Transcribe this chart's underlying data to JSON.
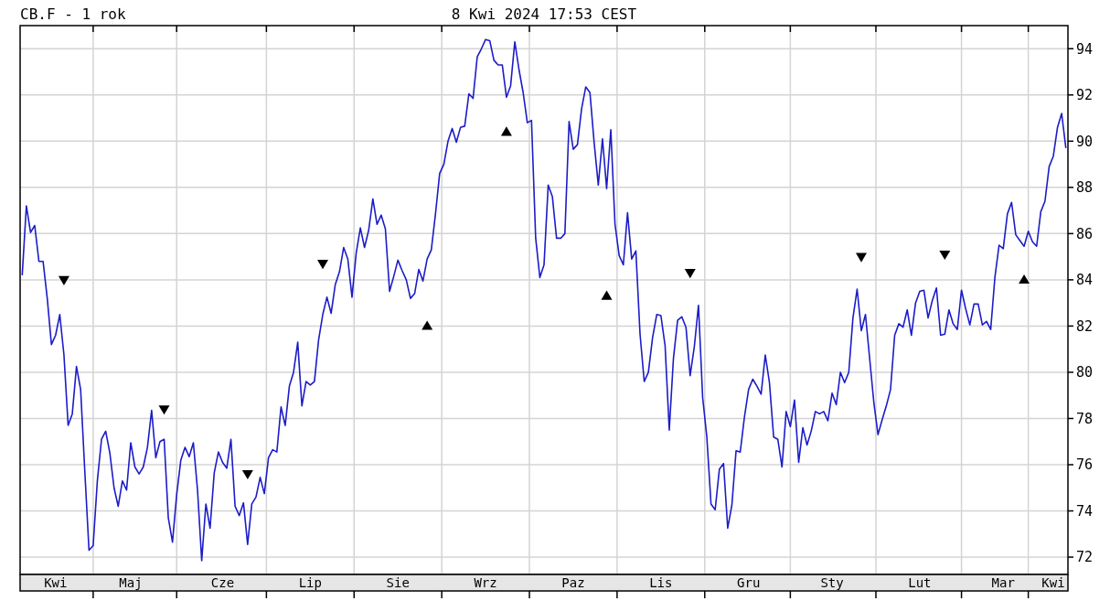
{
  "chart_data": {
    "type": "line",
    "title": "CB.F - 1 rok",
    "subtitle": "8 Kwi 2024 17:53 CEST",
    "categories": [
      null,
      null,
      null,
      null,
      null,
      null,
      null,
      null,
      "Kwi",
      null,
      null,
      null,
      null,
      null,
      null,
      null,
      null,
      null,
      null,
      null,
      null,
      null,
      null,
      null,
      null,
      null,
      "Maj",
      null,
      null,
      null,
      null,
      null,
      null,
      null,
      null,
      null,
      null,
      null,
      null,
      null,
      null,
      null,
      null,
      null,
      null,
      null,
      null,
      null,
      "Cze",
      null,
      null,
      null,
      null,
      null,
      null,
      null,
      null,
      null,
      null,
      null,
      null,
      null,
      null,
      null,
      null,
      null,
      null,
      null,
      null,
      "Lip",
      null,
      null,
      null,
      null,
      null,
      null,
      null,
      null,
      null,
      null,
      null,
      null,
      null,
      null,
      null,
      null,
      null,
      null,
      null,
      null,
      "Sie",
      null,
      null,
      null,
      null,
      null,
      null,
      null,
      null,
      null,
      null,
      null,
      null,
      null,
      null,
      null,
      null,
      null,
      null,
      null,
      null,
      "Wrz",
      null,
      null,
      null,
      null,
      null,
      null,
      null,
      null,
      null,
      null,
      null,
      null,
      null,
      null,
      null,
      null,
      null,
      null,
      null,
      null,
      "Paz",
      null,
      null,
      null,
      null,
      null,
      null,
      null,
      null,
      null,
      null,
      null,
      null,
      null,
      null,
      null,
      null,
      null,
      null,
      null,
      null,
      "Lis",
      null,
      null,
      null,
      null,
      null,
      null,
      null,
      null,
      null,
      null,
      null,
      null,
      null,
      null,
      null,
      null,
      null,
      null,
      null,
      null,
      "Gru",
      null,
      null,
      null,
      null,
      null,
      null,
      null,
      null,
      null,
      null,
      null,
      null,
      null,
      null,
      null,
      null,
      null,
      null,
      null,
      "Sty",
      null,
      null,
      null,
      null,
      null,
      null,
      null,
      null,
      null,
      null,
      null,
      null,
      null,
      null,
      null,
      null,
      null,
      null,
      null,
      null,
      "Lut",
      null,
      null,
      null,
      null,
      null,
      null,
      null,
      null,
      null,
      null,
      null,
      null,
      null,
      null,
      null,
      null,
      null,
      null,
      null,
      "Mar",
      null,
      null,
      null,
      null,
      null,
      null,
      null,
      null,
      null,
      null,
      null,
      "Kwi",
      null,
      null,
      null
    ],
    "ylim": [
      71.25,
      95
    ],
    "yticks": [
      72,
      74,
      76,
      78,
      80,
      82,
      84,
      86,
      88,
      90,
      92,
      94
    ],
    "grid": true,
    "series": [
      {
        "color": "#1c1cc8",
        "marker": "none",
        "line_style": "solid",
        "values": [
          84.2,
          87.2,
          86.05,
          86.35,
          84.8,
          84.8,
          83.2,
          81.2,
          81.6,
          82.5,
          80.75,
          77.7,
          78.2,
          80.25,
          79.25,
          75.7,
          72.3,
          72.5,
          75.3,
          77.1,
          77.45,
          76.5,
          75.0,
          74.2,
          75.3,
          74.9,
          76.95,
          75.9,
          75.6,
          75.9,
          76.75,
          78.35,
          76.3,
          77.0,
          77.1,
          73.7,
          72.65,
          74.7,
          76.2,
          76.75,
          76.35,
          76.95,
          74.9,
          71.85,
          74.3,
          73.25,
          75.65,
          76.55,
          76.1,
          75.85,
          77.1,
          74.2,
          73.8,
          74.35,
          72.55,
          74.3,
          74.6,
          75.45,
          74.75,
          76.3,
          76.65,
          76.55,
          78.5,
          77.7,
          79.4,
          80.0,
          81.3,
          78.55,
          79.6,
          79.45,
          79.6,
          81.4,
          82.5,
          83.25,
          82.55,
          83.8,
          84.35,
          85.4,
          84.9,
          83.25,
          85.15,
          86.25,
          85.4,
          86.15,
          87.5,
          86.4,
          86.8,
          86.2,
          83.5,
          84.15,
          84.85,
          84.4,
          84.0,
          83.2,
          83.4,
          84.45,
          83.95,
          84.9,
          85.3,
          86.85,
          88.6,
          89.0,
          90.0,
          90.55,
          89.95,
          90.6,
          90.65,
          92.05,
          91.85,
          93.65,
          94.0,
          94.4,
          94.35,
          93.5,
          93.3,
          93.3,
          91.9,
          92.4,
          94.3,
          93.1,
          92.1,
          90.8,
          90.9,
          85.8,
          84.1,
          84.65,
          88.1,
          87.6,
          85.8,
          85.8,
          86.0,
          90.85,
          89.65,
          89.85,
          91.4,
          92.35,
          92.1,
          89.95,
          88.1,
          90.1,
          87.95,
          90.5,
          86.4,
          85.05,
          84.65,
          86.9,
          84.9,
          85.25,
          81.65,
          79.6,
          80.0,
          81.5,
          82.5,
          82.45,
          81.15,
          77.5,
          80.6,
          82.25,
          82.4,
          81.95,
          79.85,
          81.1,
          82.9,
          78.9,
          77.2,
          74.3,
          74.05,
          75.8,
          76.05,
          73.25,
          74.25,
          76.6,
          76.55,
          78.05,
          79.25,
          79.7,
          79.4,
          79.05,
          80.75,
          79.55,
          77.2,
          77.1,
          75.9,
          78.3,
          77.65,
          78.8,
          76.1,
          77.6,
          76.85,
          77.45,
          78.3,
          78.2,
          78.3,
          77.9,
          79.1,
          78.6,
          80.0,
          79.55,
          80.0,
          82.35,
          83.6,
          81.8,
          82.5,
          80.6,
          78.7,
          77.3,
          77.95,
          78.55,
          79.25,
          81.6,
          82.1,
          81.95,
          82.7,
          81.6,
          83.0,
          83.5,
          83.55,
          82.35,
          83.1,
          83.65,
          81.6,
          81.65,
          82.7,
          82.1,
          81.85,
          83.55,
          82.75,
          82.05,
          82.95,
          82.95,
          82.05,
          82.2,
          81.85,
          84.1,
          85.5,
          85.35,
          86.85,
          87.35,
          85.95,
          85.7,
          85.45,
          86.1,
          85.65,
          85.45,
          86.95,
          87.4,
          88.9,
          89.35,
          90.6,
          91.2,
          89.7
        ]
      },
      {
        "type": "scatter",
        "color": "#000000",
        "marker": "triangle-down",
        "values": [
          null,
          null,
          null,
          null,
          null,
          null,
          null,
          null,
          null,
          null,
          84.0,
          null,
          null,
          null,
          null,
          null,
          null,
          null,
          null,
          null,
          null,
          null,
          null,
          null,
          null,
          null,
          null,
          null,
          null,
          null,
          null,
          null,
          null,
          null,
          78.4,
          null,
          null,
          null,
          null,
          null,
          null,
          null,
          null,
          null,
          null,
          null,
          null,
          null,
          null,
          null,
          null,
          null,
          null,
          null,
          75.6,
          null,
          null,
          null,
          null,
          null,
          null,
          null,
          null,
          null,
          null,
          null,
          null,
          null,
          null,
          null,
          null,
          null,
          84.7,
          null,
          null,
          null,
          null,
          null,
          null,
          null,
          null,
          null,
          null,
          null,
          null,
          null,
          null,
          null,
          null,
          null,
          null,
          null,
          null,
          null,
          null,
          null,
          null,
          null,
          null,
          null,
          null,
          null,
          null,
          null,
          null,
          null,
          null,
          null,
          null,
          null,
          null,
          null,
          null,
          null,
          null,
          null,
          null,
          null,
          null,
          null,
          null,
          null,
          null,
          null,
          null,
          null,
          null,
          null,
          null,
          null,
          null,
          null,
          null,
          null,
          null,
          null,
          null,
          null,
          null,
          null,
          null,
          null,
          null,
          null,
          null,
          null,
          null,
          null,
          null,
          null,
          null,
          null,
          null,
          null,
          null,
          null,
          null,
          null,
          null,
          null,
          84.3,
          null,
          null,
          null,
          null,
          null,
          null,
          null,
          null,
          null,
          null,
          null,
          null,
          null,
          null,
          null,
          null,
          null,
          null,
          null,
          null,
          null,
          null,
          null,
          null,
          null,
          null,
          null,
          null,
          null,
          null,
          null,
          null,
          null,
          null,
          null,
          null,
          null,
          null,
          null,
          null,
          85.0,
          null,
          null,
          null,
          null,
          null,
          null,
          null,
          null,
          null,
          null,
          null,
          null,
          null,
          null,
          null,
          null,
          null,
          null,
          null,
          85.1,
          null,
          null,
          null,
          null,
          null,
          null,
          null,
          null,
          null,
          null,
          null,
          null,
          null,
          null,
          null,
          null,
          null,
          null,
          null,
          null,
          null,
          null,
          null,
          null,
          null,
          null,
          null,
          null,
          null
        ]
      },
      {
        "type": "scatter",
        "color": "#000000",
        "marker": "triangle",
        "values": [
          null,
          null,
          null,
          null,
          null,
          null,
          null,
          null,
          null,
          null,
          null,
          null,
          null,
          null,
          null,
          null,
          null,
          null,
          null,
          null,
          null,
          null,
          null,
          null,
          null,
          null,
          null,
          null,
          null,
          null,
          null,
          null,
          null,
          null,
          null,
          null,
          null,
          null,
          null,
          null,
          null,
          null,
          null,
          null,
          null,
          null,
          null,
          null,
          null,
          null,
          null,
          null,
          null,
          null,
          null,
          null,
          null,
          null,
          null,
          null,
          null,
          null,
          null,
          null,
          null,
          null,
          null,
          null,
          null,
          null,
          null,
          null,
          null,
          null,
          null,
          null,
          null,
          null,
          null,
          null,
          null,
          null,
          null,
          null,
          null,
          null,
          null,
          null,
          null,
          null,
          null,
          null,
          null,
          null,
          null,
          null,
          null,
          82.0,
          null,
          null,
          null,
          null,
          null,
          null,
          null,
          null,
          null,
          null,
          null,
          null,
          null,
          null,
          null,
          null,
          null,
          null,
          90.4,
          null,
          null,
          null,
          null,
          null,
          null,
          null,
          null,
          null,
          null,
          null,
          null,
          null,
          null,
          null,
          null,
          null,
          null,
          null,
          null,
          null,
          null,
          null,
          83.3,
          null,
          null,
          null,
          null,
          null,
          null,
          null,
          null,
          null,
          null,
          null,
          null,
          null,
          null,
          null,
          null,
          null,
          null,
          null,
          null,
          null,
          null,
          null,
          null,
          null,
          null,
          null,
          null,
          null,
          null,
          null,
          null,
          null,
          null,
          null,
          null,
          null,
          null,
          null,
          null,
          null,
          null,
          null,
          null,
          null,
          null,
          null,
          null,
          null,
          null,
          null,
          null,
          null,
          null,
          null,
          null,
          null,
          null,
          null,
          null,
          null,
          null,
          null,
          null,
          null,
          null,
          null,
          null,
          null,
          null,
          null,
          null,
          null,
          null,
          null,
          null,
          null,
          null,
          null,
          null,
          null,
          null,
          null,
          null,
          null,
          null,
          null,
          null,
          null,
          null,
          null,
          null,
          null,
          null,
          null,
          null,
          null,
          null,
          null,
          84.0,
          null,
          null,
          null,
          null,
          null,
          null,
          null,
          null,
          null,
          null
        ]
      }
    ]
  }
}
